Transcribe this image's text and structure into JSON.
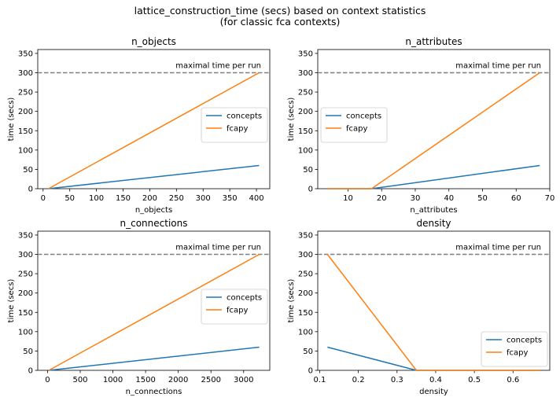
{
  "figure": {
    "title_line1": "lattice_construction_time (secs) based on context statistics",
    "title_line2": "(for classic fca contexts)"
  },
  "chart_data": [
    {
      "type": "line",
      "title": "n_objects",
      "xlabel": "n_objects",
      "ylabel": "time (secs)",
      "xlim": [
        -10,
        425
      ],
      "ylim": [
        0,
        360
      ],
      "xticks": [
        0,
        50,
        100,
        150,
        200,
        250,
        300,
        350,
        400
      ],
      "yticks": [
        0,
        50,
        100,
        150,
        200,
        250,
        300,
        350
      ],
      "hline": {
        "y": 300,
        "label": "maximal time per run",
        "color": "#808080",
        "style": "dashed"
      },
      "legend_position": "center-right",
      "series": [
        {
          "name": "concepts",
          "color": "#1f77b4",
          "x": [
            10,
            405
          ],
          "y": [
            0,
            60
          ]
        },
        {
          "name": "fcapy",
          "color": "#ff7f0e",
          "x": [
            10,
            405
          ],
          "y": [
            0,
            300
          ]
        }
      ]
    },
    {
      "type": "line",
      "title": "n_attributes",
      "xlabel": "n_attributes",
      "ylabel": "time (secs)",
      "xlim": [
        1,
        70
      ],
      "ylim": [
        0,
        360
      ],
      "xticks": [
        10,
        20,
        30,
        40,
        50,
        60,
        70
      ],
      "yticks": [
        0,
        50,
        100,
        150,
        200,
        250,
        300,
        350
      ],
      "hline": {
        "y": 300,
        "label": "maximal time per run",
        "color": "#808080",
        "style": "dashed"
      },
      "legend_position": "center-left",
      "series": [
        {
          "name": "concepts",
          "color": "#1f77b4",
          "x": [
            4,
            17,
            67
          ],
          "y": [
            0,
            0,
            60
          ]
        },
        {
          "name": "fcapy",
          "color": "#ff7f0e",
          "x": [
            4,
            17,
            67
          ],
          "y": [
            0,
            0,
            300
          ]
        }
      ]
    },
    {
      "type": "line",
      "title": "n_connections",
      "xlabel": "n_connections",
      "ylabel": "time (secs)",
      "xlim": [
        -150,
        3400
      ],
      "ylim": [
        0,
        360
      ],
      "xticks": [
        0,
        500,
        1000,
        1500,
        2000,
        2500,
        3000
      ],
      "yticks": [
        0,
        50,
        100,
        150,
        200,
        250,
        300,
        350
      ],
      "hline": {
        "y": 300,
        "label": "maximal time per run",
        "color": "#808080",
        "style": "dashed"
      },
      "legend_position": "center-right",
      "series": [
        {
          "name": "concepts",
          "color": "#1f77b4",
          "x": [
            20,
            3240
          ],
          "y": [
            0,
            60
          ]
        },
        {
          "name": "fcapy",
          "color": "#ff7f0e",
          "x": [
            20,
            3240
          ],
          "y": [
            0,
            300
          ]
        }
      ]
    },
    {
      "type": "line",
      "title": "density",
      "xlabel": "density",
      "ylabel": "time (secs)",
      "xlim": [
        0.095,
        0.695
      ],
      "ylim": [
        0,
        360
      ],
      "xticks": [
        0.1,
        0.2,
        0.3,
        0.4,
        0.5,
        0.6
      ],
      "yticks": [
        0,
        50,
        100,
        150,
        200,
        250,
        300,
        350
      ],
      "hline": {
        "y": 300,
        "label": "maximal time per run",
        "color": "#808080",
        "style": "dashed"
      },
      "legend_position": "lower-right",
      "series": [
        {
          "name": "concepts",
          "color": "#1f77b4",
          "x": [
            0.12,
            0.35,
            0.67
          ],
          "y": [
            60,
            0,
            0
          ]
        },
        {
          "name": "fcapy",
          "color": "#ff7f0e",
          "x": [
            0.12,
            0.35,
            0.67
          ],
          "y": [
            300,
            0,
            0
          ]
        }
      ]
    }
  ]
}
